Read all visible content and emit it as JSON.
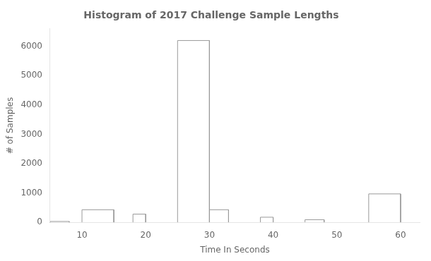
{
  "chart_data": {
    "type": "histogram",
    "title": "Histogram of 2017 Challenge Sample Lengths",
    "xlabel": "Time In Seconds",
    "ylabel": "# of Samples",
    "bins": [
      5,
      8,
      10,
      15,
      18,
      20,
      25,
      30,
      33,
      38,
      40,
      45,
      48,
      55,
      60,
      63
    ],
    "values": [
      30,
      0,
      430,
      0,
      280,
      0,
      6200,
      430,
      0,
      175,
      0,
      90,
      0,
      970,
      0
    ],
    "color": "#999999",
    "xlim": [
      5,
      63
    ],
    "xticks": [
      10,
      20,
      30,
      40,
      50,
      60
    ],
    "ylim": [
      0,
      6600
    ],
    "yticks": [
      0,
      1000,
      2000,
      3000,
      4000,
      5000,
      6000
    ],
    "grid": false
  }
}
